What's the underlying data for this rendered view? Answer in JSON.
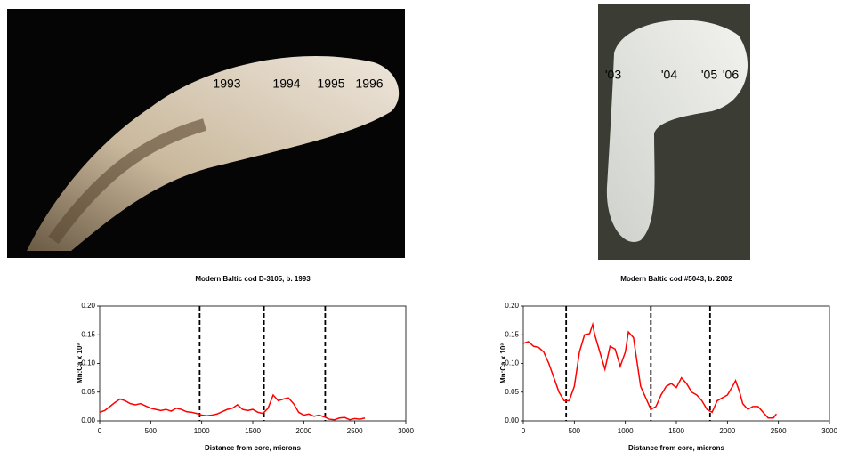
{
  "chart_data": [
    {
      "type": "line",
      "title": "Modern Baltic cod D-3105, b. 1993",
      "x_label": "Distance from core, microns",
      "y_label": "Mn:Ca x 10³",
      "annotations": [
        "1993",
        "1994",
        "1995",
        "1996"
      ],
      "xlim": [
        0,
        3000
      ],
      "xticks": [
        0,
        500,
        1000,
        1500,
        2000,
        2500,
        3000
      ],
      "ylim": [
        0,
        0.2
      ],
      "yticks": [
        {
          "value": 0,
          "label": "0.00"
        },
        {
          "value": 0.05,
          "label": "0.05"
        },
        {
          "value": 0.1,
          "label": "0.10"
        },
        {
          "value": 0.15,
          "label": "0.15"
        },
        {
          "value": 0.2,
          "label": "0.20"
        }
      ],
      "vlines": [
        980,
        1610,
        2210
      ],
      "series": [
        {
          "color": "#ff0000",
          "x": [
            0,
            50,
            100,
            150,
            200,
            250,
            300,
            350,
            400,
            450,
            500,
            550,
            600,
            650,
            700,
            750,
            800,
            850,
            900,
            950,
            1000,
            1050,
            1100,
            1150,
            1200,
            1250,
            1300,
            1350,
            1400,
            1450,
            1500,
            1550,
            1600,
            1650,
            1700,
            1750,
            1800,
            1850,
            1900,
            1950,
            2000,
            2050,
            2100,
            2150,
            2200,
            2250,
            2300,
            2350,
            2400,
            2450,
            2500,
            2550,
            2600
          ],
          "values": [
            0.015,
            0.018,
            0.025,
            0.032,
            0.038,
            0.035,
            0.03,
            0.028,
            0.03,
            0.026,
            0.022,
            0.02,
            0.018,
            0.02,
            0.017,
            0.022,
            0.02,
            0.016,
            0.015,
            0.013,
            0.01,
            0.009,
            0.01,
            0.012,
            0.016,
            0.02,
            0.022,
            0.028,
            0.02,
            0.018,
            0.02,
            0.015,
            0.013,
            0.022,
            0.045,
            0.035,
            0.038,
            0.04,
            0.03,
            0.015,
            0.01,
            0.012,
            0.008,
            0.01,
            0.007,
            0.003,
            0.002,
            0.005,
            0.006,
            0.002,
            0.004,
            0.003,
            0.005
          ]
        }
      ]
    },
    {
      "type": "line",
      "title": "Modern Baltic cod #5043, b. 2002",
      "x_label": "Distance from core, microns",
      "y_label": "Mn:Ca x 10³",
      "annotations": [
        "'03",
        "'04",
        "'05",
        "'06"
      ],
      "xlim": [
        0,
        3000
      ],
      "xticks": [
        0,
        500,
        1000,
        1500,
        2000,
        2500,
        3000
      ],
      "ylim": [
        0,
        0.2
      ],
      "yticks": [
        {
          "value": 0,
          "label": "0.00"
        },
        {
          "value": 0.05,
          "label": "0.05"
        },
        {
          "value": 0.1,
          "label": "0.10"
        },
        {
          "value": 0.15,
          "label": "0.15"
        },
        {
          "value": 0.2,
          "label": "0.20"
        }
      ],
      "vlines": [
        420,
        1250,
        1830
      ],
      "series": [
        {
          "color": "#ff0000",
          "x": [
            0,
            50,
            100,
            150,
            200,
            250,
            300,
            350,
            400,
            450,
            500,
            550,
            600,
            650,
            680,
            700,
            750,
            800,
            850,
            900,
            950,
            1000,
            1030,
            1080,
            1100,
            1150,
            1200,
            1250,
            1300,
            1350,
            1400,
            1450,
            1500,
            1550,
            1600,
            1650,
            1700,
            1750,
            1800,
            1850,
            1900,
            1950,
            2000,
            2050,
            2080,
            2120,
            2150,
            2200,
            2250,
            2300,
            2350,
            2400,
            2450,
            2480
          ],
          "values": [
            0.135,
            0.138,
            0.13,
            0.128,
            0.12,
            0.1,
            0.075,
            0.05,
            0.035,
            0.035,
            0.06,
            0.12,
            0.15,
            0.152,
            0.168,
            0.15,
            0.12,
            0.09,
            0.13,
            0.125,
            0.095,
            0.12,
            0.155,
            0.145,
            0.12,
            0.06,
            0.04,
            0.02,
            0.025,
            0.045,
            0.06,
            0.065,
            0.058,
            0.075,
            0.065,
            0.05,
            0.045,
            0.035,
            0.02,
            0.015,
            0.035,
            0.04,
            0.045,
            0.06,
            0.07,
            0.05,
            0.03,
            0.02,
            0.025,
            0.025,
            0.015,
            0.005,
            0.005,
            0.012
          ]
        }
      ]
    }
  ]
}
